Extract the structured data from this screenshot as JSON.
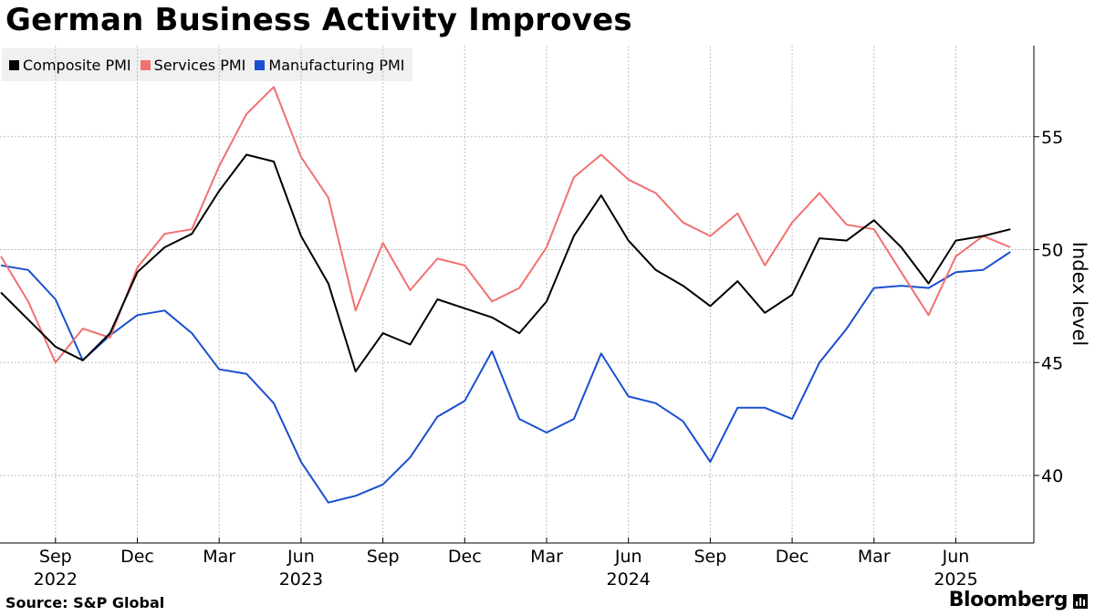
{
  "title": "German Business Activity Improves",
  "source": "Source: S&P Global",
  "brand": "Bloomberg",
  "chart_data": {
    "type": "line",
    "ylabel": "Index level",
    "ylim": [
      36.9,
      58.7
    ],
    "yticks": [
      40,
      45,
      50,
      55
    ],
    "grid": true,
    "legend_position": "top-left",
    "x_ticks": [
      {
        "label": "Sep",
        "year": "2022",
        "index": 2
      },
      {
        "label": "Dec",
        "year": "",
        "index": 5
      },
      {
        "label": "Mar",
        "year": "",
        "index": 8
      },
      {
        "label": "Jun",
        "year": "2023",
        "index": 11
      },
      {
        "label": "Sep",
        "year": "",
        "index": 14
      },
      {
        "label": "Dec",
        "year": "",
        "index": 17
      },
      {
        "label": "Mar",
        "year": "",
        "index": 20
      },
      {
        "label": "Jun",
        "year": "2024",
        "index": 23
      },
      {
        "label": "Sep",
        "year": "",
        "index": 26
      },
      {
        "label": "Dec",
        "year": "",
        "index": 29
      },
      {
        "label": "Mar",
        "year": "",
        "index": 32
      },
      {
        "label": "Jun",
        "year": "2025",
        "index": 35
      }
    ],
    "x": [
      "Jul 2022",
      "Aug 2022",
      "Sep 2022",
      "Oct 2022",
      "Nov 2022",
      "Dec 2022",
      "Jan 2023",
      "Feb 2023",
      "Mar 2023",
      "Apr 2023",
      "May 2023",
      "Jun 2023",
      "Jul 2023",
      "Aug 2023",
      "Sep 2023",
      "Oct 2023",
      "Nov 2023",
      "Dec 2023",
      "Jan 2024",
      "Feb 2024",
      "Mar 2024",
      "Apr 2024",
      "May 2024",
      "Jun 2024",
      "Jul 2024",
      "Aug 2024",
      "Sep 2024",
      "Oct 2024",
      "Nov 2024",
      "Dec 2024",
      "Jan 2025",
      "Feb 2025",
      "Mar 2025",
      "Apr 2025",
      "May 2025",
      "Jun 2025",
      "Jul 2025",
      "Aug 2025"
    ],
    "series": [
      {
        "name": "Composite PMI",
        "color": "#000000",
        "values": [
          48.1,
          46.9,
          45.7,
          45.1,
          46.3,
          49.0,
          50.1,
          50.7,
          52.6,
          54.2,
          53.9,
          50.6,
          48.5,
          44.6,
          46.3,
          45.8,
          47.8,
          47.4,
          47.0,
          46.3,
          47.7,
          50.6,
          52.4,
          50.4,
          49.1,
          48.4,
          47.5,
          48.6,
          47.2,
          48.0,
          50.5,
          50.4,
          51.3,
          50.1,
          48.5,
          50.4,
          50.6,
          50.9
        ]
      },
      {
        "name": "Services PMI",
        "color": "#f0716f",
        "values": [
          49.7,
          47.7,
          45.0,
          46.5,
          46.1,
          49.2,
          50.7,
          50.9,
          53.7,
          56.0,
          57.2,
          54.1,
          52.3,
          47.3,
          50.3,
          48.2,
          49.6,
          49.3,
          47.7,
          48.3,
          50.1,
          53.2,
          54.2,
          53.1,
          52.5,
          51.2,
          50.6,
          51.6,
          49.3,
          51.2,
          52.5,
          51.1,
          50.9,
          49.0,
          47.1,
          49.7,
          50.6,
          50.1
        ]
      },
      {
        "name": "Manufacturing PMI",
        "color": "#1a4fd0",
        "values": [
          49.3,
          49.1,
          47.8,
          45.1,
          46.2,
          47.1,
          47.3,
          46.3,
          44.7,
          44.5,
          43.2,
          40.6,
          38.8,
          39.1,
          39.6,
          40.8,
          42.6,
          43.3,
          45.5,
          42.5,
          41.9,
          42.5,
          45.4,
          43.5,
          43.2,
          42.4,
          40.6,
          43.0,
          43.0,
          42.5,
          45.0,
          46.5,
          48.3,
          48.4,
          48.3,
          49.0,
          49.1,
          49.9
        ]
      }
    ]
  }
}
